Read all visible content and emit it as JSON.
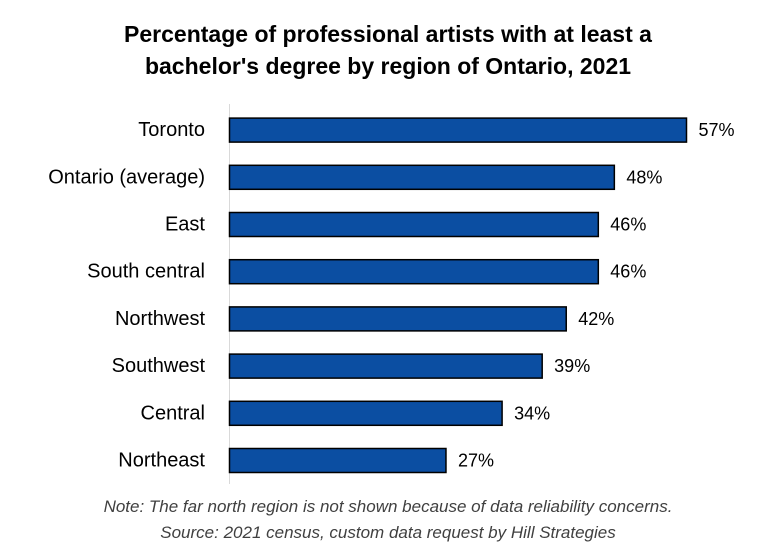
{
  "chart_data": {
    "type": "bar",
    "orientation": "horizontal",
    "title_lines": [
      "Percentage of professional artists with at least a",
      "bachelor's degree by region of Ontario, 2021"
    ],
    "categories": [
      "Toronto",
      "Ontario (average)",
      "East",
      "South central",
      "Northwest",
      "Southwest",
      "Central",
      "Northeast"
    ],
    "values": [
      57,
      48,
      46,
      46,
      42,
      39,
      34,
      27
    ],
    "value_labels": [
      "57%",
      "48%",
      "46%",
      "46%",
      "42%",
      "39%",
      "34%",
      "27%"
    ],
    "xlim": [
      0,
      60
    ],
    "grid": false,
    "legend": "none",
    "bar_color": "#0b4ea2",
    "bar_edge_color": "#000000",
    "notes": [
      "Note: The far north region is not shown because of data reliability concerns.",
      "Source: 2021 census, custom data request by Hill Strategies"
    ]
  }
}
